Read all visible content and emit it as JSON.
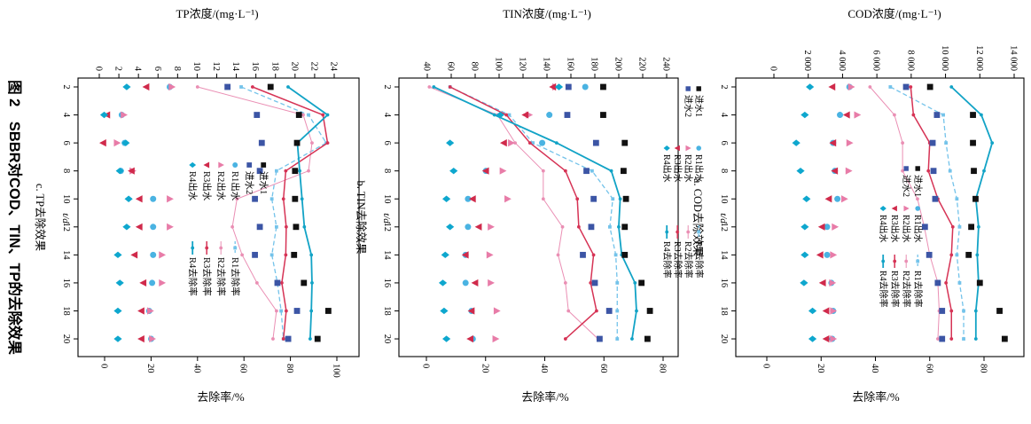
{
  "figure": {
    "caption": "图 2　SBBR对COD、TIN、TP的去除效果",
    "caption_color": "#2878bf",
    "background": "#ffffff"
  },
  "axes_common": {
    "x_label": "t/d",
    "x_ticks": [
      2,
      4,
      6,
      8,
      10,
      12,
      14,
      16,
      18,
      20
    ],
    "removal_label": "去除率/%"
  },
  "legend": {
    "influent1": "进水1",
    "influent2": "进水2",
    "effluent": [
      "R1出水",
      "R2出水",
      "R3出水",
      "R4出水"
    ],
    "removal": [
      "R1去除率",
      "R2去除率",
      "R3去除率",
      "R4去除率"
    ]
  },
  "colors": {
    "influent1": "#111111",
    "influent2": "#3c55a5",
    "r1_effluent": "#4ab3e2",
    "r2_effluent": "#e87ca8",
    "r3_effluent": "#d02a4b",
    "r4_effluent": "#0ea7ce",
    "r1_removal": "#74c3ea",
    "r2_removal": "#ea8fb4",
    "r3_removal": "#d63355",
    "r4_removal": "#12a3c6",
    "axis": "#000000",
    "caption_blue": "#2878bf"
  },
  "chart_data": [
    {
      "type": "scatter+line",
      "id": "a",
      "caption": "a. COD去除效果",
      "title": "COD浓度/(mg·L⁻¹)",
      "x": [
        2,
        4,
        6,
        8,
        10,
        12,
        14,
        16,
        18,
        20
      ],
      "conc_axis": {
        "ticks": [
          0,
          2000,
          4000,
          6000,
          8000,
          10000,
          12000,
          14000
        ],
        "labels": [
          "0",
          "2 000",
          "4 000",
          "6 000",
          "8 000",
          "10 000",
          "12 000",
          "14 000"
        ],
        "range": [
          0,
          14000
        ]
      },
      "removal_axis": {
        "ticks": [
          0,
          20,
          40,
          60,
          80
        ],
        "labels": [
          "0",
          "20",
          "40",
          "60",
          "80"
        ],
        "range": [
          0,
          80
        ]
      },
      "series": {
        "influent1": [
          9100,
          11600,
          11600,
          11650,
          11750,
          11500,
          11350,
          12000,
          13150,
          13450
        ],
        "influent2": [
          7700,
          9500,
          9250,
          9300,
          9400,
          8800,
          9050,
          9550,
          9800,
          9800
        ],
        "r1_effluent": [
          4400,
          3850,
          3450,
          3550,
          3700,
          3100,
          3100,
          3350,
          3450,
          3400
        ],
        "r2_effluent": [
          4500,
          4850,
          4400,
          4350,
          4100,
          3550,
          3450,
          3400,
          3450,
          3450
        ],
        "r3_effluent": [
          3400,
          4250,
          3450,
          3550,
          3200,
          2800,
          2700,
          2850,
          3050,
          3050
        ],
        "r4_effluent": [
          2100,
          1800,
          1300,
          1550,
          1900,
          1800,
          1800,
          1750,
          2250,
          2250
        ],
        "r1_removal": [
          45.5,
          65,
          66,
          67.5,
          70,
          71,
          70,
          71,
          72.5,
          72.5
        ],
        "r2_removal": [
          38,
          47,
          50,
          50,
          55.5,
          58,
          60,
          63,
          63.5,
          63
        ],
        "r3_removal": [
          53,
          54,
          60,
          59.5,
          63,
          68.5,
          68,
          66,
          68,
          68
        ],
        "r4_removal": [
          68,
          79,
          83,
          80,
          77,
          78,
          77.5,
          78,
          77,
          77
        ]
      }
    },
    {
      "type": "scatter+line",
      "id": "b",
      "caption": "b. TIN去除效果",
      "title": "TIN浓度/(mg·L⁻¹)",
      "x": [
        2,
        4,
        6,
        8,
        10,
        12,
        14,
        16,
        18,
        20
      ],
      "conc_axis": {
        "ticks": [
          40,
          60,
          80,
          100,
          120,
          140,
          160,
          180,
          200,
          220,
          240
        ],
        "labels": [
          "40",
          "60",
          "80",
          "100",
          "120",
          "140",
          "160",
          "180",
          "200",
          "220",
          "240"
        ],
        "range": [
          40,
          240
        ]
      },
      "removal_axis": {
        "ticks": [
          0,
          20,
          40,
          60,
          80
        ],
        "labels": [
          "0",
          "20",
          "40",
          "60",
          "80"
        ],
        "range": [
          0,
          80
        ]
      },
      "series": {
        "influent1": [
          187,
          187,
          205,
          204,
          206,
          205,
          205,
          219,
          226,
          224
        ],
        "influent2": [
          158,
          157,
          181,
          173,
          179,
          177,
          170,
          180,
          192,
          184
        ],
        "r1_effluent": [
          172,
          142,
          136,
          89,
          74,
          74,
          72,
          72,
          77,
          78
        ],
        "r2_effluent": [
          147,
          125,
          110,
          103,
          107,
          93,
          92,
          93,
          98,
          97
        ],
        "r3_effluent": [
          145,
          122,
          104,
          89,
          78,
          83,
          72,
          80,
          77,
          76
        ],
        "r4_effluent": [
          150,
          101,
          59,
          62,
          56,
          59,
          55,
          53,
          54,
          56
        ],
        "r1_removal": [
          8,
          28,
          36,
          56,
          63,
          62,
          64,
          64.5,
          64.5,
          64.5
        ],
        "r2_removal": [
          1,
          24,
          30,
          39.5,
          39.5,
          46,
          44.5,
          47,
          48,
          58
        ],
        "r3_removal": [
          8,
          27,
          35,
          47,
          51,
          51.5,
          56.5,
          55.5,
          57.5,
          47
        ],
        "r4_removal": [
          2.5,
          23,
          44,
          62.5,
          65.5,
          65,
          66,
          70.5,
          71,
          69.5
        ]
      }
    },
    {
      "type": "scatter+line",
      "id": "c",
      "caption": "c. TP去除效果",
      "title": "TP浓度/(mg·L⁻¹)",
      "x": [
        2,
        4,
        6,
        8,
        10,
        12,
        14,
        16,
        18,
        20
      ],
      "conc_axis": {
        "ticks": [
          0,
          2,
          4,
          6,
          8,
          10,
          12,
          14,
          16,
          18,
          20,
          22,
          24
        ],
        "labels": [
          "0",
          "2",
          "4",
          "6",
          "8",
          "10",
          "12",
          "14",
          "16",
          "18",
          "20",
          "22",
          "24"
        ],
        "range": [
          0,
          24
        ]
      },
      "removal_axis": {
        "ticks": [
          0,
          20,
          40,
          60,
          80,
          100
        ],
        "labels": [
          "0",
          "20",
          "40",
          "60",
          "80",
          "100"
        ],
        "range": [
          0,
          100
        ]
      },
      "series": {
        "influent1": [
          17.5,
          20.4,
          20.2,
          20.0,
          20.0,
          20.1,
          19.9,
          20.9,
          23.4,
          22.3
        ],
        "influent2": [
          13.1,
          16.1,
          16.6,
          16.4,
          15.9,
          16.4,
          15.9,
          18.2,
          20.2,
          19.3
        ],
        "r1_effluent": [
          7.2,
          2.3,
          2.6,
          2.2,
          5.5,
          5.5,
          5.5,
          5.4,
          5.1,
          5.3
        ],
        "r2_effluent": [
          7.4,
          2.5,
          1.8,
          3.4,
          7.2,
          7.2,
          6.4,
          6.4,
          5.2,
          5.4
        ],
        "r3_effluent": [
          4.8,
          0.8,
          0.4,
          3.3,
          4.1,
          4.1,
          3.6,
          4.5,
          4.3,
          4.3
        ],
        "r4_effluent": [
          2.8,
          0.5,
          2.7,
          2.1,
          3.0,
          2.8,
          1.9,
          2.1,
          1.9,
          1.9
        ],
        "r1_removal": [
          58.8,
          87.8,
          95.4,
          74,
          72,
          74,
          72,
          74.4,
          76,
          77
        ],
        "r2_removal": [
          40,
          85.5,
          89.3,
          87.8,
          57,
          55,
          59.2,
          65.6,
          74,
          72.5
        ],
        "r3_removal": [
          63.7,
          94,
          96,
          78,
          77,
          78.2,
          78,
          76.3,
          78.2,
          77
        ],
        "r4_removal": [
          79,
          96,
          83,
          84,
          85,
          86,
          89,
          89.3,
          89,
          88.5
        ]
      }
    }
  ]
}
